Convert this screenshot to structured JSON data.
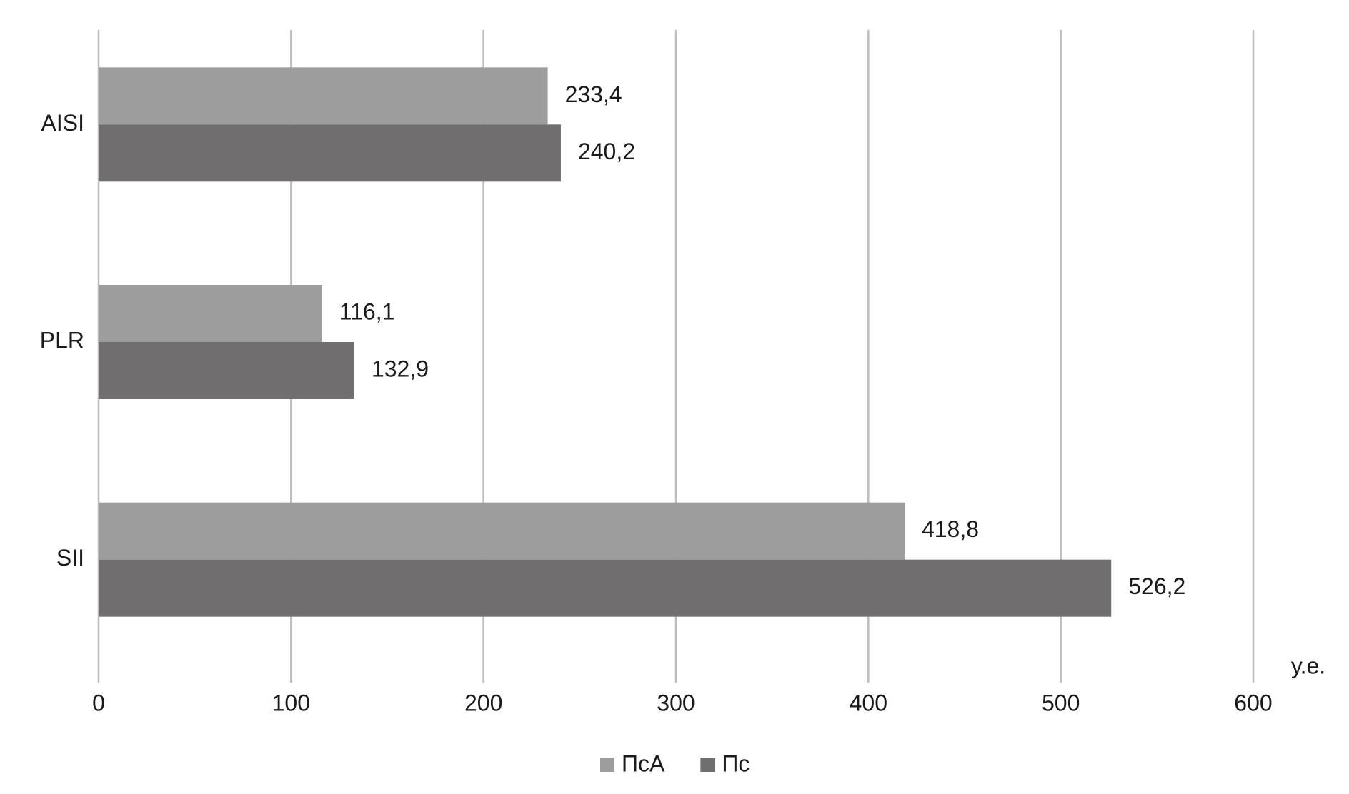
{
  "chart_data": {
    "type": "hbar",
    "categories": [
      "AISI",
      "PLR",
      "SII"
    ],
    "series": [
      {
        "name": "ПсА",
        "color": "#9d9d9d",
        "values": [
          233.4,
          116.1,
          418.8
        ],
        "value_labels": [
          "233,4",
          "116,1",
          "418,8"
        ]
      },
      {
        "name": "Пс",
        "color": "#706e6f",
        "values": [
          240.2,
          132.9,
          526.2
        ],
        "value_labels": [
          "240,2",
          "132,9",
          "526,2"
        ]
      }
    ],
    "x_label": "у.е.",
    "xlim": [
      0,
      600
    ],
    "xticks": [
      0,
      100,
      200,
      300,
      400,
      500,
      600
    ],
    "grid": true,
    "legend": "bottom"
  }
}
